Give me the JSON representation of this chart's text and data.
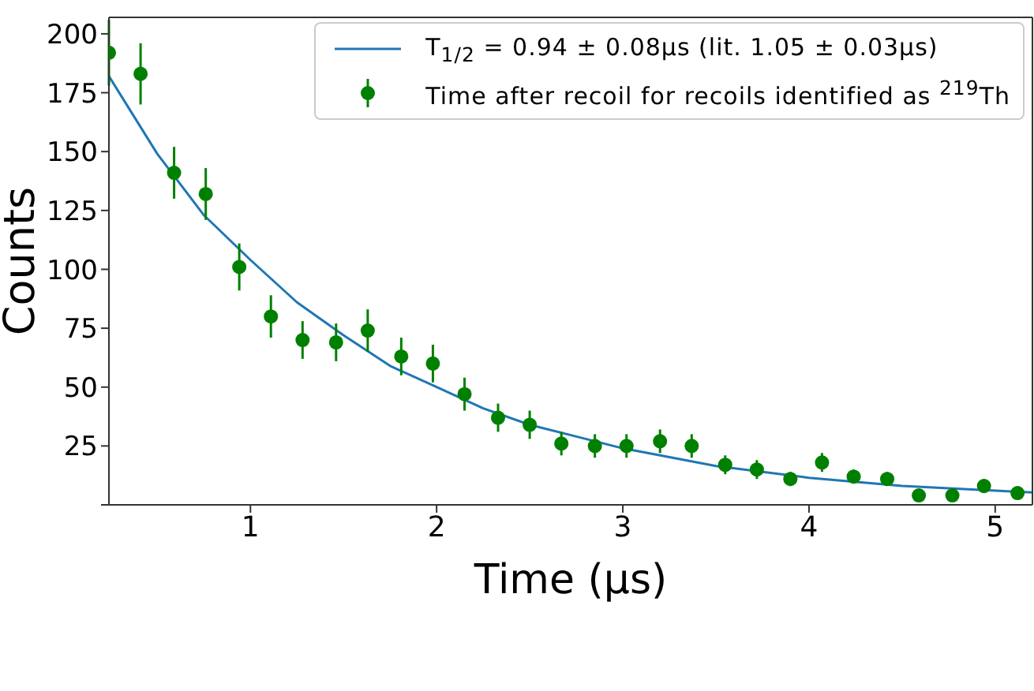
{
  "chart_data": {
    "type": "scatter",
    "xlabel": "Time (μs)",
    "ylabel": "Counts",
    "xlim": [
      0.24,
      5.2
    ],
    "ylim": [
      0,
      207
    ],
    "xticks": [
      1,
      2,
      3,
      4,
      5
    ],
    "yticks": [
      {
        "value": 0,
        "label": null
      },
      25,
      50,
      75,
      100,
      125,
      150,
      175,
      200
    ],
    "grid": false,
    "legend": "top right",
    "series": [
      {
        "type": "line",
        "name": "T$_{1/2}$ = 0.94 ± 0.08μs  (lit. 1.05 ± 0.03μs)",
        "color": "#1f77b4",
        "marker": "none",
        "line_style": "solid",
        "x": [
          0.24,
          0.5,
          0.75,
          1,
          1.25,
          1.5,
          1.75,
          2,
          2.25,
          2.5,
          2.75,
          3,
          3.5,
          4,
          4.5,
          5,
          5.2
        ],
        "values": [
          182,
          149,
          123,
          104,
          86,
          72,
          59,
          50,
          41,
          34,
          29,
          24,
          16.5,
          11.5,
          8,
          6,
          5.3
        ]
      },
      {
        "name": "Time after recoil for recoils identified as $^{219}$Th",
        "color": "#008000",
        "marker": "circle",
        "x": [
          0.24,
          0.41,
          0.59,
          0.76,
          0.94,
          1.11,
          1.28,
          1.46,
          1.63,
          1.81,
          1.98,
          2.15,
          2.33,
          2.5,
          2.67,
          2.85,
          3.02,
          3.2,
          3.37,
          3.55,
          3.72,
          3.9,
          4.07,
          4.24,
          4.42,
          4.59,
          4.77,
          4.94,
          5.12
        ],
        "values": [
          192,
          183,
          141,
          132,
          101,
          80,
          70,
          69,
          74,
          63,
          60,
          47,
          37,
          34,
          26,
          25,
          25,
          27,
          25,
          17,
          15,
          11,
          18,
          12,
          11,
          4,
          4,
          8,
          5
        ],
        "errors": [
          14,
          13,
          11,
          11,
          10,
          9,
          8,
          8,
          9,
          8,
          8,
          7,
          6,
          6,
          5,
          5,
          5,
          5,
          5,
          4,
          4,
          3,
          4,
          3,
          3,
          null,
          null,
          3,
          null
        ]
      }
    ]
  }
}
